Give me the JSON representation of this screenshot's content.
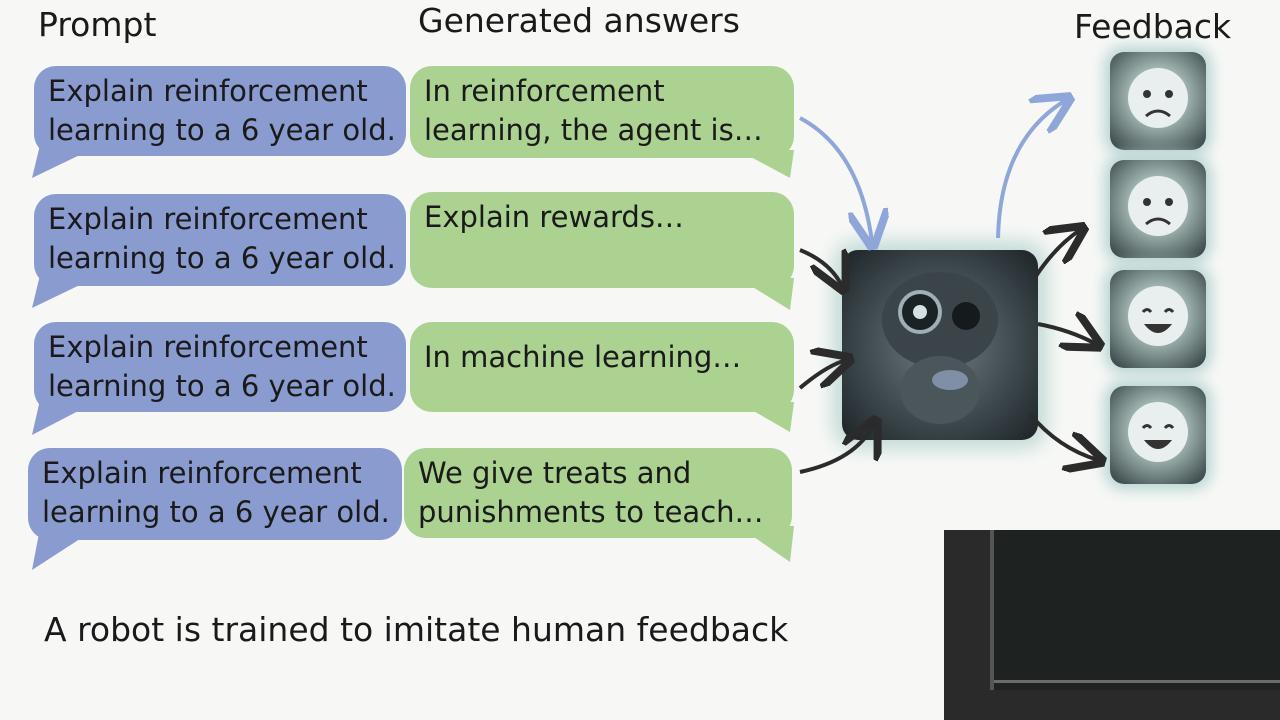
{
  "headings": {
    "prompt": "Prompt",
    "generated": "Generated answers",
    "feedback": "Feedback"
  },
  "rows": [
    {
      "prompt": [
        "Explain reinforcement",
        "learning to a 6 year old."
      ],
      "answer": [
        "In reinforcement",
        "learning, the agent is…"
      ]
    },
    {
      "prompt": [
        "Explain reinforcement",
        "learning to a 6 year old."
      ],
      "answer": [
        "Explain rewards…"
      ]
    },
    {
      "prompt": [
        "Explain reinforcement",
        "learning to a 6 year old."
      ],
      "answer": [
        "In machine learning…"
      ]
    },
    {
      "prompt": [
        "Explain reinforcement",
        "learning to a 6 year old."
      ],
      "answer": [
        "We give treats and",
        "punishments to teach…"
      ]
    }
  ],
  "caption": "A robot is trained to imitate human feedback",
  "feedback_faces": [
    "sad-face-icon",
    "sad-face-icon",
    "happy-face-icon",
    "happy-face-icon"
  ],
  "colors": {
    "prompt_bubble": "#8a9bd0",
    "answer_bubble": "#abd291",
    "arrow_blue": "#8fa6d9",
    "arrow_dark": "#2b2b2b"
  }
}
